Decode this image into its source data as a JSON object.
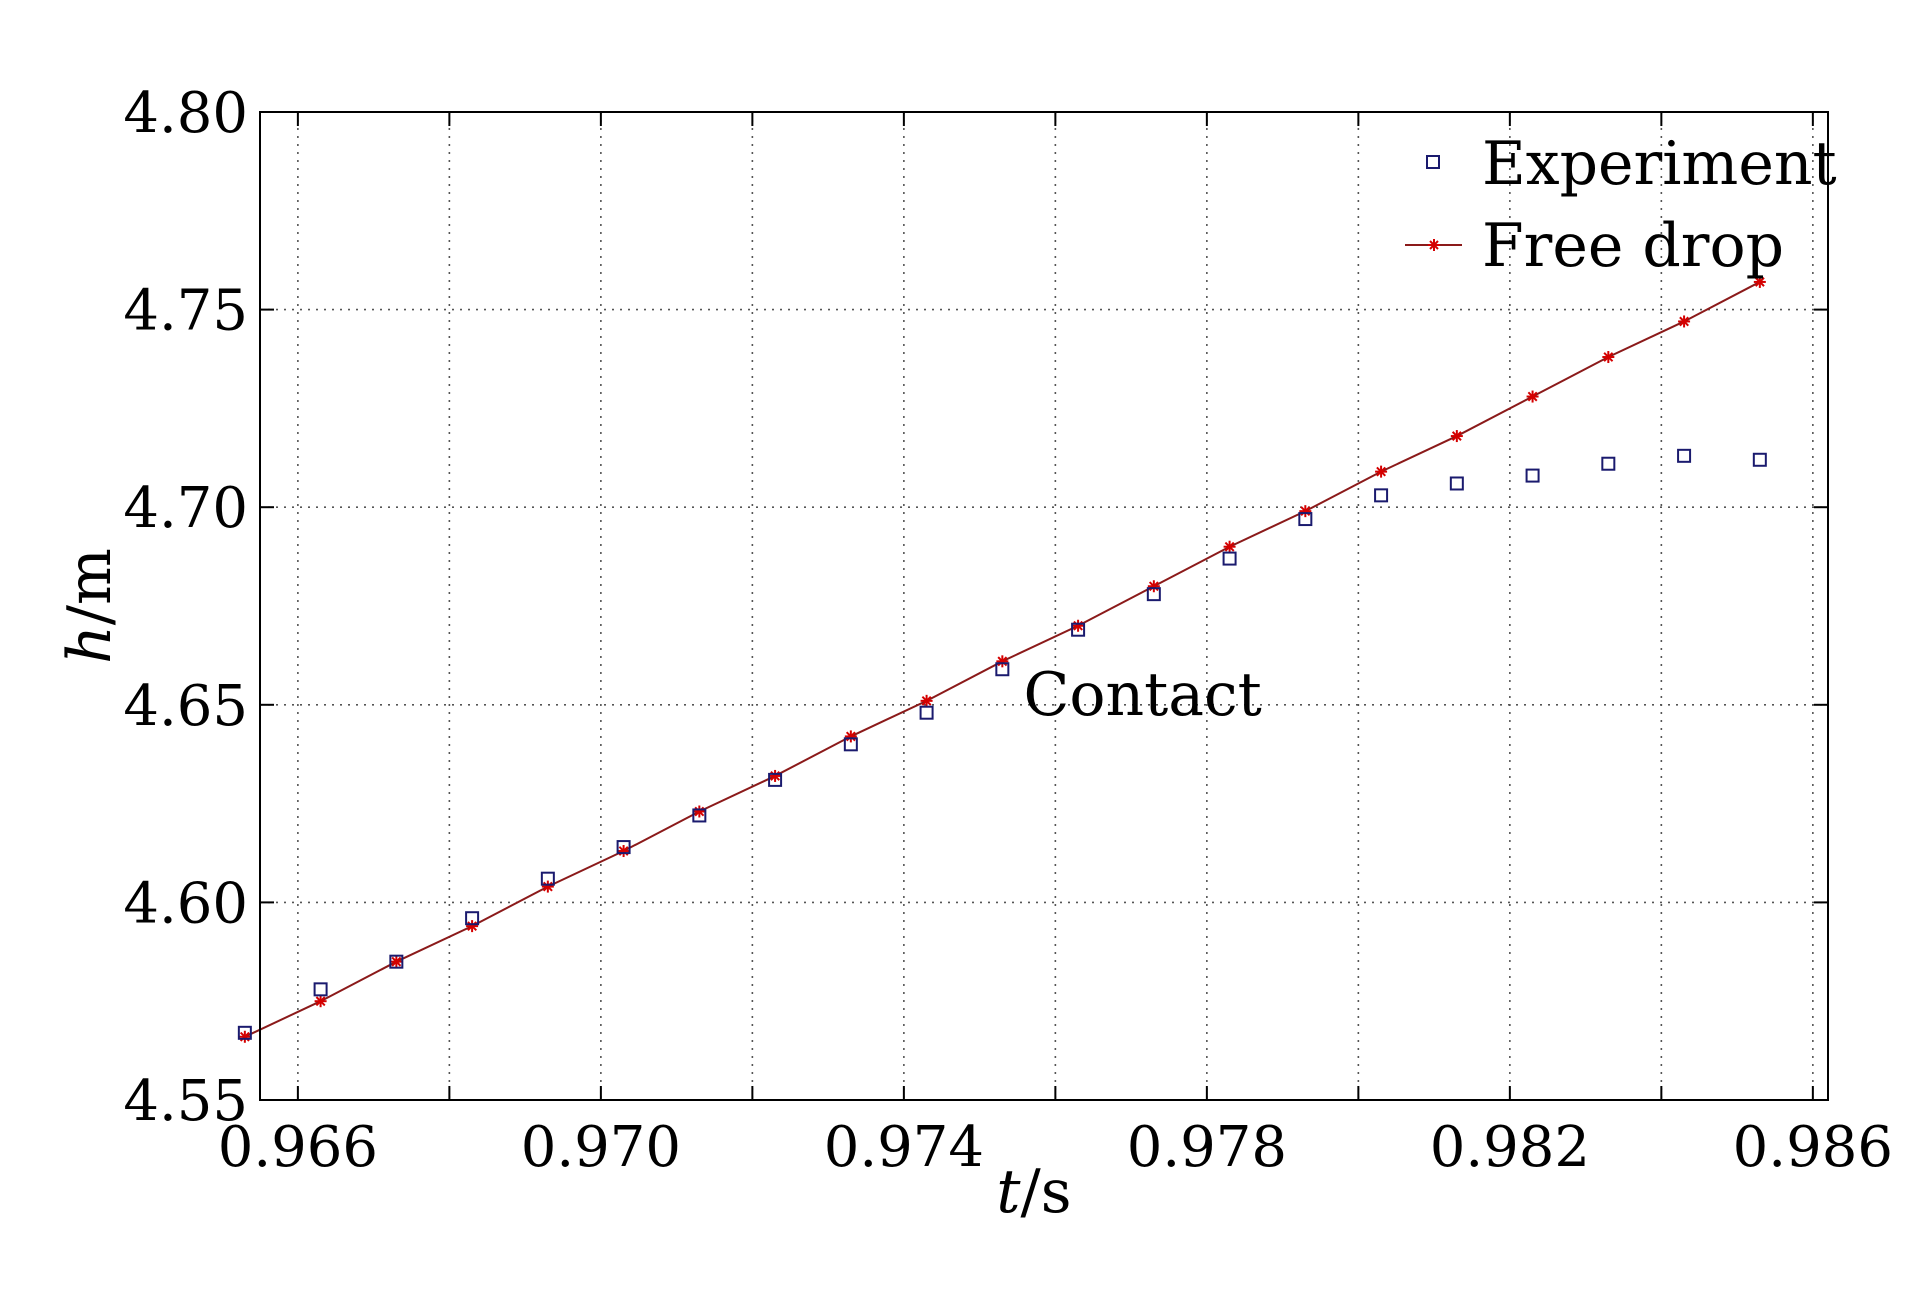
{
  "chart_data": {
    "type": "scatter",
    "xlabel_var": "t",
    "xlabel_unit": "/s",
    "ylabel_var": "h",
    "ylabel_unit": "/m",
    "xlim": [
      0.9655,
      0.9862
    ],
    "ylim": [
      4.55,
      4.8
    ],
    "xticks": [
      0.966,
      0.97,
      0.974,
      0.978,
      0.982,
      0.986
    ],
    "xtick_labels": [
      "0.966",
      "0.970",
      "0.974",
      "0.978",
      "0.982",
      "0.986"
    ],
    "xminor": [
      0.968,
      0.972,
      0.976,
      0.98,
      0.984
    ],
    "yticks": [
      4.55,
      4.6,
      4.65,
      4.7,
      4.75,
      4.8
    ],
    "ytick_labels": [
      "4.55",
      "4.60",
      "4.65",
      "4.70",
      "4.75",
      "4.80"
    ],
    "grid": true,
    "legend_position": "top-right",
    "annotation": {
      "text": "Contact",
      "x": 0.9755,
      "y": 4.653
    },
    "series": [
      {
        "name": "Experiment",
        "marker": "square",
        "color": "#1a1a6e",
        "x": [
          0.9653,
          0.9663,
          0.9673,
          0.9683,
          0.9693,
          0.9703,
          0.9713,
          0.9723,
          0.9733,
          0.9743,
          0.9753,
          0.9763,
          0.9773,
          0.9783,
          0.9793,
          0.9803,
          0.9813,
          0.9823,
          0.9833,
          0.9843,
          0.9853
        ],
        "y": [
          4.567,
          4.578,
          4.585,
          4.596,
          4.606,
          4.614,
          4.622,
          4.631,
          4.64,
          4.648,
          4.659,
          4.669,
          4.678,
          4.687,
          4.697,
          4.703,
          4.706,
          4.708,
          4.711,
          4.713,
          4.712
        ]
      },
      {
        "name": "Free drop",
        "marker": "asterisk-line",
        "color": "#d40000",
        "line_color": "#8b1a1a",
        "x": [
          0.9653,
          0.9663,
          0.9673,
          0.9683,
          0.9693,
          0.9703,
          0.9713,
          0.9723,
          0.9733,
          0.9743,
          0.9753,
          0.9763,
          0.9773,
          0.9783,
          0.9793,
          0.9803,
          0.9813,
          0.9823,
          0.9833,
          0.9843,
          0.9853
        ],
        "y": [
          4.566,
          4.575,
          4.585,
          4.594,
          4.604,
          4.613,
          4.623,
          4.632,
          4.642,
          4.651,
          4.661,
          4.67,
          4.68,
          4.69,
          4.699,
          4.709,
          4.718,
          4.728,
          4.738,
          4.747,
          4.757
        ]
      }
    ]
  }
}
